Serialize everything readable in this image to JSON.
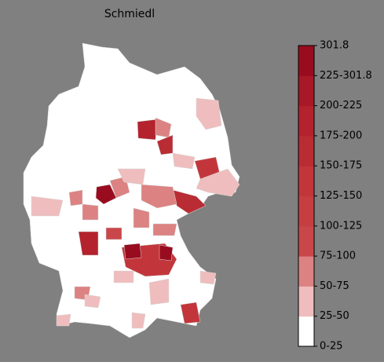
{
  "title": "Schmiedl",
  "colorbar": {
    "labels": [
      "0-25",
      "25-50",
      "50-75",
      "75-100",
      "100-125",
      "125-150",
      "150-175",
      "175-200",
      "200-225",
      "225-301.8",
      "301.8"
    ],
    "colors": [
      "#ffffff",
      "#efbdbd",
      "#dc8282",
      "#c9474a",
      "#c63e41",
      "#c2363b",
      "#b92c34",
      "#b3222d",
      "#a81826",
      "#990c1f"
    ]
  }
}
